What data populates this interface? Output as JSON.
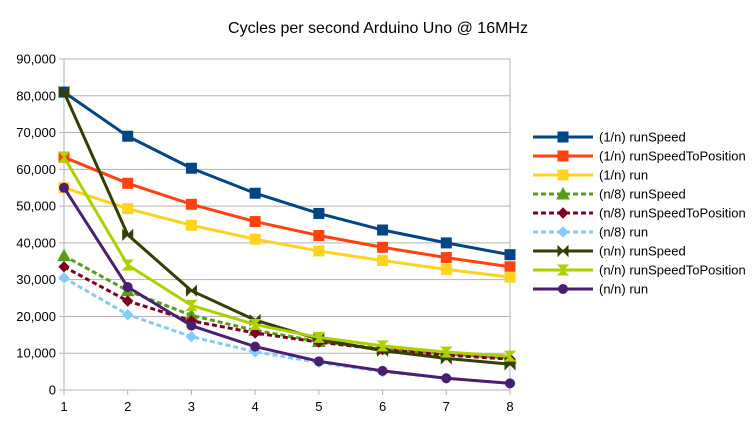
{
  "chart_data": {
    "type": "line",
    "title": "Cycles per second Arduino Uno @ 16MHz",
    "xlabel": "",
    "ylabel": "",
    "x": [
      1,
      2,
      3,
      4,
      5,
      6,
      7,
      8
    ],
    "ylim": [
      0,
      90000
    ],
    "yticks": [
      "0",
      "10,000",
      "20,000",
      "30,000",
      "40,000",
      "50,000",
      "60,000",
      "70,000",
      "80,000",
      "90,000"
    ],
    "xticks": [
      "1",
      "2",
      "3",
      "4",
      "5",
      "6",
      "7",
      "8"
    ],
    "grid": "horizontal",
    "legend_position": "right",
    "series": [
      {
        "name": "(1/n) runSpeed",
        "values": [
          81000,
          69000,
          60300,
          53500,
          48000,
          43500,
          40000,
          36800
        ],
        "color": "#004586",
        "marker": "square",
        "dash": "solid"
      },
      {
        "name": "(1/n) runSpeedToPosition",
        "values": [
          63300,
          56200,
          50500,
          45800,
          42000,
          38800,
          36000,
          33500
        ],
        "color": "#FF420E",
        "marker": "square",
        "dash": "solid"
      },
      {
        "name": "(1/n) run",
        "values": [
          55000,
          49300,
          44800,
          41000,
          37800,
          35200,
          32800,
          30700
        ],
        "color": "#FFD320",
        "marker": "square",
        "dash": "solid"
      },
      {
        "name": "(n/8) runSpeed",
        "values": [
          36500,
          27000,
          20300,
          16200,
          13200,
          11200,
          9800,
          8700
        ],
        "color": "#579D1C",
        "marker": "triangle",
        "dash": "dashed"
      },
      {
        "name": "(n/8) runSpeedToPosition",
        "values": [
          33500,
          24200,
          18800,
          15500,
          13000,
          11000,
          9500,
          8400
        ],
        "color": "#7E0021",
        "marker": "diamond",
        "dash": "dashed"
      },
      {
        "name": "(n/8) run",
        "values": [
          30500,
          20500,
          14500,
          10400,
          7500,
          5000,
          3200,
          1800
        ],
        "color": "#83CAFF",
        "marker": "diamond",
        "dash": "dashed"
      },
      {
        "name": "(n/n) runSpeed",
        "values": [
          81000,
          42200,
          27000,
          19000,
          13800,
          10700,
          8600,
          7000
        ],
        "color": "#314004",
        "marker": "bowtie",
        "dash": "solid"
      },
      {
        "name": "(n/n) runSpeedToPosition",
        "values": [
          63300,
          34000,
          23000,
          17800,
          14300,
          12000,
          10300,
          9200
        ],
        "color": "#AECF00",
        "marker": "hourglass",
        "dash": "solid"
      },
      {
        "name": "(n/n) run",
        "values": [
          55000,
          28000,
          17500,
          11800,
          7800,
          5200,
          3200,
          1800
        ],
        "color": "#4B1F6F",
        "marker": "circle",
        "dash": "solid"
      }
    ]
  }
}
